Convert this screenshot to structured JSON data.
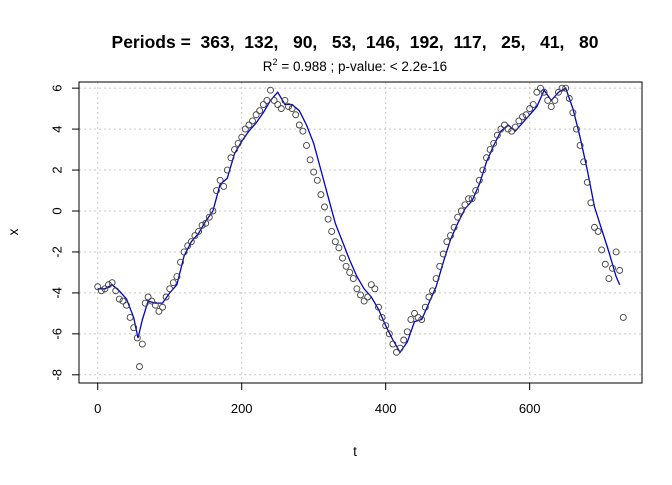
{
  "chart_data": {
    "type": "scatter",
    "title": "Periods =  363,  132,   90,   53,  146,  192,  117,   25,   41,   80",
    "subtitle": {
      "r_symbol": "R",
      "r_superscript": "2",
      "text": " = 0.988 ; p-value: < 2.2e-16"
    },
    "xlabel": "t",
    "ylabel": "x",
    "xlim": [
      -26,
      756
    ],
    "ylim": [
      -8.4,
      6.3
    ],
    "xticks": [
      0,
      200,
      400,
      600
    ],
    "xtick_labels": [
      "0",
      "200",
      "400",
      "600"
    ],
    "yticks": [
      -8,
      -6,
      -4,
      -2,
      0,
      2,
      4,
      6
    ],
    "ytick_labels": [
      "-8",
      "-6",
      "-4",
      "-2",
      "0",
      "2",
      "4",
      "6"
    ],
    "grid": true,
    "series": [
      {
        "kind": "points",
        "marker": "open-circle",
        "color": "#404040",
        "x": [
          0,
          5,
          10,
          15,
          20,
          25,
          30,
          35,
          40,
          45,
          50,
          55,
          58,
          62,
          66,
          70,
          75,
          80,
          85,
          90,
          95,
          100,
          105,
          110,
          115,
          120,
          125,
          130,
          135,
          140,
          145,
          150,
          155,
          160,
          165,
          170,
          175,
          180,
          185,
          190,
          195,
          200,
          205,
          210,
          215,
          220,
          225,
          230,
          235,
          240,
          245,
          250,
          255,
          260,
          265,
          270,
          275,
          280,
          285,
          290,
          295,
          300,
          305,
          310,
          315,
          320,
          325,
          330,
          335,
          340,
          345,
          350,
          355,
          360,
          365,
          370,
          375,
          380,
          385,
          390,
          395,
          400,
          405,
          410,
          415,
          420,
          425,
          430,
          435,
          440,
          445,
          450,
          455,
          460,
          465,
          470,
          475,
          480,
          485,
          490,
          495,
          500,
          505,
          510,
          515,
          520,
          525,
          530,
          535,
          540,
          545,
          550,
          555,
          560,
          565,
          570,
          575,
          580,
          585,
          590,
          595,
          600,
          605,
          610,
          615,
          620,
          625,
          630,
          635,
          640,
          645,
          650,
          655,
          660,
          665,
          670,
          675,
          680,
          685,
          690,
          695,
          700,
          705,
          710,
          715,
          720,
          725,
          730
        ],
        "y": [
          -3.7,
          -3.9,
          -3.8,
          -3.6,
          -3.5,
          -3.9,
          -4.3,
          -4.4,
          -4.6,
          -5.2,
          -5.7,
          -6.2,
          -7.6,
          -6.5,
          -4.5,
          -4.2,
          -4.4,
          -4.6,
          -4.9,
          -4.7,
          -4.2,
          -3.8,
          -3.5,
          -3.2,
          -2.5,
          -2.0,
          -1.7,
          -1.5,
          -1.2,
          -1.0,
          -0.7,
          -0.6,
          -0.3,
          0.0,
          1.0,
          1.5,
          1.2,
          2.0,
          2.6,
          3.0,
          3.3,
          3.6,
          4.0,
          4.2,
          4.4,
          4.7,
          4.9,
          5.2,
          5.4,
          5.9,
          5.4,
          5.2,
          5.0,
          5.4,
          5.1,
          5.0,
          4.7,
          4.2,
          3.9,
          3.2,
          2.5,
          1.9,
          1.5,
          0.8,
          0.2,
          -0.4,
          -1.0,
          -1.5,
          -1.8,
          -2.3,
          -2.7,
          -3.0,
          -3.3,
          -3.8,
          -4.1,
          -4.4,
          -4.2,
          -3.6,
          -3.8,
          -4.7,
          -5.2,
          -5.6,
          -6.0,
          -6.5,
          -6.9,
          -6.7,
          -6.3,
          -5.9,
          -5.3,
          -5.0,
          -5.2,
          -5.3,
          -4.7,
          -4.2,
          -3.9,
          -3.3,
          -2.7,
          -2.1,
          -1.5,
          -1.2,
          -0.8,
          -0.3,
          0.0,
          0.3,
          0.6,
          0.6,
          1.0,
          1.5,
          2.0,
          2.6,
          3.0,
          3.3,
          3.7,
          4.0,
          4.2,
          4.0,
          3.9,
          4.1,
          4.4,
          4.6,
          4.7,
          5.0,
          5.2,
          5.8,
          6.0,
          5.8,
          5.4,
          5.1,
          5.4,
          5.8,
          6.0,
          6.0,
          5.5,
          4.8,
          4.0,
          3.2,
          2.4,
          1.4,
          0.4,
          -0.8,
          -1.0,
          -1.9,
          -2.6,
          -3.3,
          -2.8,
          -2.0,
          -2.9,
          -5.2
        ]
      },
      {
        "kind": "fitted-line",
        "color": "#0000cc",
        "x": [
          0,
          10,
          20,
          30,
          40,
          50,
          56,
          62,
          70,
          80,
          90,
          100,
          110,
          120,
          130,
          140,
          150,
          160,
          170,
          180,
          190,
          200,
          210,
          220,
          230,
          240,
          250,
          260,
          270,
          280,
          290,
          300,
          310,
          320,
          330,
          340,
          350,
          360,
          370,
          380,
          390,
          400,
          410,
          420,
          430,
          440,
          450,
          460,
          470,
          480,
          490,
          500,
          510,
          520,
          530,
          540,
          550,
          560,
          570,
          580,
          590,
          600,
          610,
          620,
          630,
          640,
          650,
          660,
          670,
          680,
          690,
          700,
          710,
          720,
          725
        ],
        "y": [
          -3.8,
          -3.8,
          -3.6,
          -3.9,
          -4.3,
          -5.2,
          -6.2,
          -5.3,
          -4.4,
          -4.5,
          -4.5,
          -4.0,
          -3.6,
          -2.2,
          -1.5,
          -1.1,
          -0.5,
          0.0,
          1.3,
          1.6,
          2.8,
          3.4,
          3.9,
          4.3,
          4.8,
          5.4,
          5.8,
          5.2,
          5.2,
          4.9,
          4.2,
          3.3,
          2.0,
          0.7,
          -0.6,
          -1.5,
          -2.4,
          -3.2,
          -3.8,
          -4.2,
          -4.8,
          -5.6,
          -6.3,
          -6.9,
          -6.4,
          -5.4,
          -5.3,
          -4.5,
          -3.7,
          -2.5,
          -1.4,
          -0.6,
          0.1,
          0.5,
          1.3,
          2.4,
          3.2,
          3.9,
          4.2,
          3.9,
          4.3,
          4.7,
          5.1,
          5.9,
          5.4,
          5.8,
          6.0,
          5.0,
          3.6,
          2.0,
          0.2,
          -0.9,
          -2.0,
          -3.2,
          -3.6
        ]
      }
    ]
  }
}
